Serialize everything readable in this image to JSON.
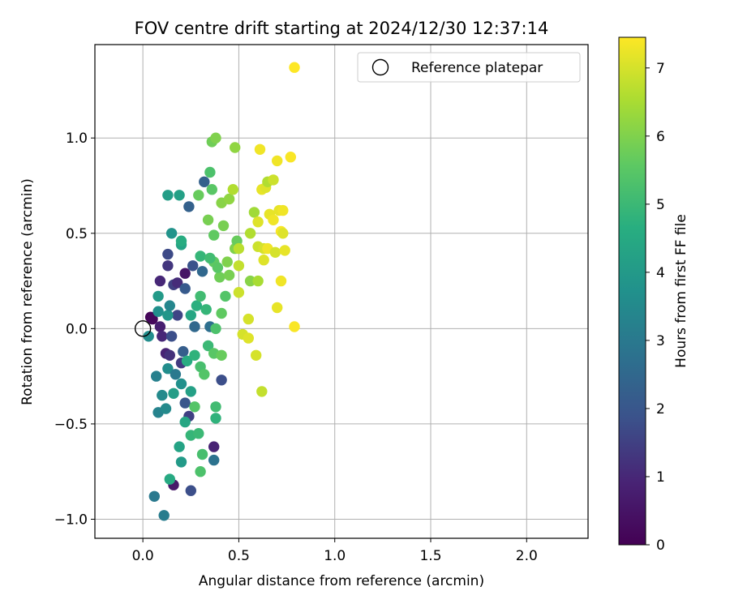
{
  "chart_data": {
    "type": "scatter",
    "title": "FOV centre drift starting at 2024/12/30 12:37:14",
    "xlabel": "Angular distance from reference (arcmin)",
    "ylabel": "Rotation from reference (arcmin)",
    "xlim": [
      -0.25,
      2.32
    ],
    "ylim": [
      -1.1,
      1.49
    ],
    "xticks": [
      0.0,
      0.5,
      1.0,
      1.5,
      2.0
    ],
    "xtick_labels": [
      "0.0",
      "0.5",
      "1.0",
      "1.5",
      "2.0"
    ],
    "yticks": [
      -1.0,
      -0.5,
      0.0,
      0.5,
      1.0
    ],
    "ytick_labels": [
      "−1.0",
      "−0.5",
      "0.0",
      "0.5",
      "1.0"
    ],
    "grid": true,
    "legend": {
      "placement": "top-right",
      "entries": [
        "Reference platepar"
      ]
    },
    "reference_point": {
      "x": 0.0,
      "y": 0.0,
      "label": "Reference platepar"
    },
    "colorbar": {
      "label": "Hours from first FF file",
      "colormap": "viridis",
      "range": [
        0,
        7.45
      ],
      "ticks": [
        0,
        1,
        2,
        3,
        4,
        5,
        6,
        7
      ],
      "tick_labels": [
        "0",
        "1",
        "2",
        "3",
        "4",
        "5",
        "6",
        "7"
      ]
    },
    "series": [
      {
        "values": [
          {
            "x": 0.04,
            "y": 0.06,
            "t": 0.1
          },
          {
            "x": 0.05,
            "y": 0.05,
            "t": 0.2
          },
          {
            "x": 0.09,
            "y": 0.01,
            "t": 0.8
          },
          {
            "x": 0.1,
            "y": -0.04,
            "t": 1.0
          },
          {
            "x": 0.09,
            "y": 0.25,
            "t": 1.0
          },
          {
            "x": 0.13,
            "y": 0.33,
            "t": 1.3
          },
          {
            "x": 0.13,
            "y": 0.39,
            "t": 1.7
          },
          {
            "x": 0.12,
            "y": -0.13,
            "t": 0.9
          },
          {
            "x": 0.14,
            "y": -0.14,
            "t": 1.2
          },
          {
            "x": 0.16,
            "y": 0.23,
            "t": 1.5
          },
          {
            "x": 0.18,
            "y": 0.24,
            "t": 1.1
          },
          {
            "x": 0.22,
            "y": 0.29,
            "t": 0.5
          },
          {
            "x": 0.18,
            "y": 0.07,
            "t": 1.6
          },
          {
            "x": 0.15,
            "y": -0.04,
            "t": 1.8
          },
          {
            "x": 0.2,
            "y": -0.18,
            "t": 1.4
          },
          {
            "x": 0.16,
            "y": -0.82,
            "t": 0.6
          },
          {
            "x": 0.25,
            "y": -0.85,
            "t": 1.8
          },
          {
            "x": 0.37,
            "y": -0.62,
            "t": 0.9
          },
          {
            "x": 0.24,
            "y": -0.46,
            "t": 1.5
          },
          {
            "x": 0.22,
            "y": -0.39,
            "t": 2.0
          },
          {
            "x": 0.21,
            "y": -0.12,
            "t": 2.2
          },
          {
            "x": 0.22,
            "y": 0.21,
            "t": 2.1
          },
          {
            "x": 0.26,
            "y": 0.33,
            "t": 1.9
          },
          {
            "x": 0.24,
            "y": 0.64,
            "t": 2.3
          },
          {
            "x": 0.32,
            "y": 0.77,
            "t": 2.3
          },
          {
            "x": 0.31,
            "y": 0.3,
            "t": 2.5
          },
          {
            "x": 0.41,
            "y": -0.27,
            "t": 1.8
          },
          {
            "x": 0.27,
            "y": 0.01,
            "t": 2.5
          },
          {
            "x": 0.35,
            "y": 0.01,
            "t": 2.7
          },
          {
            "x": 0.37,
            "y": -0.69,
            "t": 2.8
          },
          {
            "x": 0.06,
            "y": -0.88,
            "t": 3.0
          },
          {
            "x": 0.11,
            "y": -0.98,
            "t": 3.1
          },
          {
            "x": 0.07,
            "y": -0.25,
            "t": 3.2
          },
          {
            "x": 0.08,
            "y": -0.44,
            "t": 3.3
          },
          {
            "x": 0.1,
            "y": -0.35,
            "t": 3.5
          },
          {
            "x": 0.12,
            "y": -0.42,
            "t": 3.5
          },
          {
            "x": 0.03,
            "y": -0.04,
            "t": 3.6
          },
          {
            "x": 0.08,
            "y": 0.09,
            "t": 3.7
          },
          {
            "x": 0.13,
            "y": 0.07,
            "t": 3.9
          },
          {
            "x": 0.14,
            "y": 0.12,
            "t": 3.4
          },
          {
            "x": 0.08,
            "y": 0.17,
            "t": 4.0
          },
          {
            "x": 0.13,
            "y": 0.7,
            "t": 4.1
          },
          {
            "x": 0.19,
            "y": 0.7,
            "t": 4.2
          },
          {
            "x": 0.15,
            "y": 0.5,
            "t": 3.8
          },
          {
            "x": 0.2,
            "y": 0.44,
            "t": 4.3
          },
          {
            "x": 0.2,
            "y": 0.46,
            "t": 4.6
          },
          {
            "x": 0.13,
            "y": -0.21,
            "t": 3.6
          },
          {
            "x": 0.17,
            "y": -0.24,
            "t": 3.0
          },
          {
            "x": 0.2,
            "y": -0.29,
            "t": 3.7
          },
          {
            "x": 0.19,
            "y": -0.62,
            "t": 4.3
          },
          {
            "x": 0.2,
            "y": -0.7,
            "t": 4.0
          },
          {
            "x": 0.14,
            "y": -0.79,
            "t": 4.5
          },
          {
            "x": 0.16,
            "y": -0.34,
            "t": 4.1
          },
          {
            "x": 0.22,
            "y": -0.49,
            "t": 4.4
          },
          {
            "x": 0.25,
            "y": -0.33,
            "t": 4.2
          },
          {
            "x": 0.25,
            "y": -0.56,
            "t": 4.9
          },
          {
            "x": 0.29,
            "y": -0.55,
            "t": 5.0
          },
          {
            "x": 0.31,
            "y": -0.66,
            "t": 5.2
          },
          {
            "x": 0.3,
            "y": -0.75,
            "t": 5.3
          },
          {
            "x": 0.27,
            "y": -0.41,
            "t": 5.4
          },
          {
            "x": 0.38,
            "y": -0.41,
            "t": 5.1
          },
          {
            "x": 0.38,
            "y": -0.47,
            "t": 4.8
          },
          {
            "x": 0.23,
            "y": -0.17,
            "t": 4.6
          },
          {
            "x": 0.27,
            "y": -0.14,
            "t": 4.8
          },
          {
            "x": 0.3,
            "y": -0.2,
            "t": 5.2
          },
          {
            "x": 0.32,
            "y": -0.24,
            "t": 5.4
          },
          {
            "x": 0.25,
            "y": 0.07,
            "t": 4.4
          },
          {
            "x": 0.28,
            "y": 0.12,
            "t": 4.7
          },
          {
            "x": 0.3,
            "y": 0.17,
            "t": 5.1
          },
          {
            "x": 0.33,
            "y": 0.1,
            "t": 4.9
          },
          {
            "x": 0.34,
            "y": -0.09,
            "t": 5.0
          },
          {
            "x": 0.38,
            "y": 0.0,
            "t": 5.3
          },
          {
            "x": 0.37,
            "y": -0.13,
            "t": 5.5
          },
          {
            "x": 0.41,
            "y": -0.14,
            "t": 5.7
          },
          {
            "x": 0.37,
            "y": 0.35,
            "t": 5.6
          },
          {
            "x": 0.4,
            "y": 0.27,
            "t": 5.8
          },
          {
            "x": 0.39,
            "y": 0.32,
            "t": 5.5
          },
          {
            "x": 0.43,
            "y": 0.17,
            "t": 5.4
          },
          {
            "x": 0.41,
            "y": 0.08,
            "t": 5.6
          },
          {
            "x": 0.45,
            "y": 0.28,
            "t": 5.9
          },
          {
            "x": 0.44,
            "y": 0.35,
            "t": 6.0
          },
          {
            "x": 0.3,
            "y": 0.38,
            "t": 4.9
          },
          {
            "x": 0.35,
            "y": 0.37,
            "t": 5.1
          },
          {
            "x": 0.29,
            "y": 0.7,
            "t": 5.7
          },
          {
            "x": 0.35,
            "y": 0.82,
            "t": 5.3
          },
          {
            "x": 0.36,
            "y": 0.73,
            "t": 5.5
          },
          {
            "x": 0.37,
            "y": 0.49,
            "t": 5.6
          },
          {
            "x": 0.34,
            "y": 0.57,
            "t": 5.9
          },
          {
            "x": 0.36,
            "y": 0.98,
            "t": 5.8
          },
          {
            "x": 0.38,
            "y": 1.0,
            "t": 6.0
          },
          {
            "x": 0.41,
            "y": 0.66,
            "t": 6.1
          },
          {
            "x": 0.45,
            "y": 0.68,
            "t": 6.2
          },
          {
            "x": 0.42,
            "y": 0.54,
            "t": 5.9
          },
          {
            "x": 0.48,
            "y": 0.42,
            "t": 6.0
          },
          {
            "x": 0.49,
            "y": 0.46,
            "t": 5.7
          },
          {
            "x": 0.48,
            "y": 0.95,
            "t": 6.2
          },
          {
            "x": 0.56,
            "y": 0.25,
            "t": 6.1
          },
          {
            "x": 0.58,
            "y": 0.61,
            "t": 6.4
          },
          {
            "x": 0.56,
            "y": 0.5,
            "t": 6.6
          },
          {
            "x": 0.47,
            "y": 0.73,
            "t": 6.6
          },
          {
            "x": 0.5,
            "y": 0.42,
            "t": 6.7
          },
          {
            "x": 0.5,
            "y": 0.33,
            "t": 6.8
          },
          {
            "x": 0.5,
            "y": 0.19,
            "t": 6.9
          },
          {
            "x": 0.52,
            "y": -0.03,
            "t": 7.0
          },
          {
            "x": 0.55,
            "y": 0.05,
            "t": 7.0
          },
          {
            "x": 0.55,
            "y": -0.05,
            "t": 7.1
          },
          {
            "x": 0.59,
            "y": -0.14,
            "t": 7.0
          },
          {
            "x": 0.62,
            "y": -0.33,
            "t": 6.8
          },
          {
            "x": 0.6,
            "y": 0.25,
            "t": 6.5
          },
          {
            "x": 0.6,
            "y": 0.43,
            "t": 6.9
          },
          {
            "x": 0.63,
            "y": 0.42,
            "t": 7.0
          },
          {
            "x": 0.6,
            "y": 0.56,
            "t": 7.1
          },
          {
            "x": 0.62,
            "y": 0.73,
            "t": 7.2
          },
          {
            "x": 0.64,
            "y": 0.74,
            "t": 7.1
          },
          {
            "x": 0.65,
            "y": 0.77,
            "t": 6.6
          },
          {
            "x": 0.68,
            "y": 0.78,
            "t": 6.9
          },
          {
            "x": 0.63,
            "y": 0.36,
            "t": 7.1
          },
          {
            "x": 0.65,
            "y": 0.42,
            "t": 7.3
          },
          {
            "x": 0.66,
            "y": 0.6,
            "t": 7.2
          },
          {
            "x": 0.68,
            "y": 0.57,
            "t": 7.3
          },
          {
            "x": 0.69,
            "y": 0.4,
            "t": 7.0
          },
          {
            "x": 0.71,
            "y": 0.62,
            "t": 7.2
          },
          {
            "x": 0.73,
            "y": 0.62,
            "t": 7.3
          },
          {
            "x": 0.72,
            "y": 0.51,
            "t": 7.4
          },
          {
            "x": 0.73,
            "y": 0.5,
            "t": 7.1
          },
          {
            "x": 0.72,
            "y": 0.25,
            "t": 7.3
          },
          {
            "x": 0.74,
            "y": 0.41,
            "t": 7.2
          },
          {
            "x": 0.7,
            "y": 0.11,
            "t": 7.2
          },
          {
            "x": 0.7,
            "y": 0.88,
            "t": 7.3
          },
          {
            "x": 0.77,
            "y": 0.9,
            "t": 7.4
          },
          {
            "x": 0.61,
            "y": 0.94,
            "t": 7.3
          },
          {
            "x": 0.79,
            "y": 0.01,
            "t": 7.4
          },
          {
            "x": 0.79,
            "y": 1.37,
            "t": 7.45
          }
        ]
      }
    ]
  }
}
